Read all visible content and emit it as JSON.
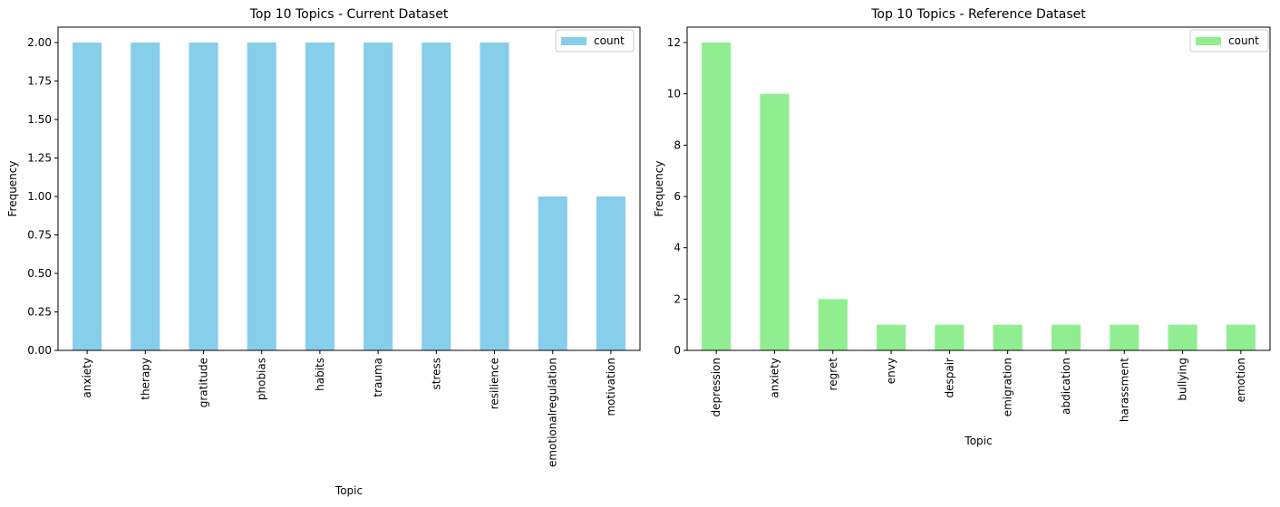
{
  "chart_data": [
    {
      "type": "bar",
      "title": "Top 10 Topics - Current Dataset",
      "xlabel": "Topic",
      "ylabel": "Frequency",
      "categories": [
        "anxiety",
        "therapy",
        "gratitude",
        "phobias",
        "habits",
        "trauma",
        "stress",
        "resilience",
        "emotionalregulation",
        "motivation"
      ],
      "series": [
        {
          "name": "count",
          "values": [
            2,
            2,
            2,
            2,
            2,
            2,
            2,
            2,
            1,
            1
          ]
        }
      ],
      "ylim": [
        0,
        2.1
      ],
      "yticks": [
        0,
        0.25,
        0.5,
        0.75,
        1.0,
        1.25,
        1.5,
        1.75,
        2.0
      ],
      "ytick_labels": [
        "0.00",
        "0.25",
        "0.50",
        "0.75",
        "1.00",
        "1.25",
        "1.50",
        "1.75",
        "2.00"
      ],
      "color": "#87ceeb",
      "legend": "top-right",
      "grid": false
    },
    {
      "type": "bar",
      "title": "Top 10 Topics - Reference Dataset",
      "xlabel": "Topic",
      "ylabel": "Frequency",
      "categories": [
        "depression",
        "anxiety",
        "regret",
        "envy",
        "despair",
        "emigration",
        "abdication",
        "harassment",
        "bullying",
        "emotion"
      ],
      "series": [
        {
          "name": "count",
          "values": [
            12,
            10,
            2,
            1,
            1,
            1,
            1,
            1,
            1,
            1
          ]
        }
      ],
      "ylim": [
        0,
        12.6
      ],
      "yticks": [
        0,
        2,
        4,
        6,
        8,
        10,
        12
      ],
      "ytick_labels": [
        "0",
        "2",
        "4",
        "6",
        "8",
        "10",
        "12"
      ],
      "color": "#90ee90",
      "legend": "top-right",
      "grid": false
    }
  ]
}
